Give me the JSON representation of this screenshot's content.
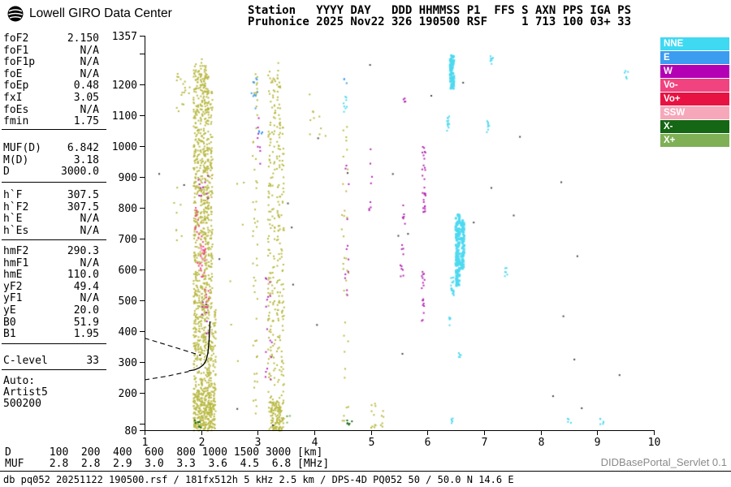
{
  "branding": {
    "logo_text": "Lowell GIRO Data Center"
  },
  "header": {
    "line1": "Station   YYYY DAY   DDD HHMMSS P1  FFS S AXN PPS IGA PS",
    "line2": "Pruhonice 2025 Nov22 326 190500 RSF     1 713 100 03+ 33"
  },
  "parameters": {
    "groups": [
      [
        {
          "l": "foF2",
          "v": "2.150"
        },
        {
          "l": "foF1",
          "v": "N/A"
        },
        {
          "l": "foF1p",
          "v": "N/A"
        },
        {
          "l": "foE",
          "v": "N/A"
        },
        {
          "l": "foEp",
          "v": "0.48"
        },
        {
          "l": "fxI",
          "v": "3.05"
        },
        {
          "l": "foEs",
          "v": "N/A"
        },
        {
          "l": "fmin",
          "v": "1.75"
        }
      ],
      [
        {
          "l": "MUF(D)",
          "v": "6.842"
        },
        {
          "l": "M(D)",
          "v": "3.18"
        },
        {
          "l": "D",
          "v": "3000.0"
        }
      ],
      [
        {
          "l": "h`F",
          "v": "307.5"
        },
        {
          "l": "h`F2",
          "v": "307.5"
        },
        {
          "l": "h`E",
          "v": "N/A"
        },
        {
          "l": "h`Es",
          "v": "N/A"
        }
      ],
      [
        {
          "l": "hmF2",
          "v": "290.3"
        },
        {
          "l": "hmF1",
          "v": "N/A"
        },
        {
          "l": "hmE",
          "v": "110.0"
        },
        {
          "l": "yF2",
          "v": "49.4"
        },
        {
          "l": "yF1",
          "v": "N/A"
        },
        {
          "l": "yE",
          "v": "20.0"
        },
        {
          "l": "B0",
          "v": "51.9"
        },
        {
          "l": "B1",
          "v": "1.95"
        }
      ],
      [
        {
          "l": "C-level",
          "v": "33"
        }
      ]
    ],
    "auto": [
      "Auto:",
      "Artist5",
      "500200"
    ]
  },
  "legend": [
    {
      "id": "nne",
      "label": "NNE",
      "color": "#3fd9f2"
    },
    {
      "id": "e",
      "label": "E",
      "color": "#3b9cf0"
    },
    {
      "id": "w",
      "label": "W",
      "color": "#b400b4"
    },
    {
      "id": "vo-neg",
      "label": "Vo-",
      "color": "#f1437f"
    },
    {
      "id": "vo-pos",
      "label": "Vo+",
      "color": "#e81242"
    },
    {
      "id": "ssw",
      "label": "SSW",
      "color": "#f6a8ba"
    },
    {
      "id": "x-neg",
      "label": "X-",
      "color": "#156615"
    },
    {
      "id": "x-pos",
      "label": "X+",
      "color": "#7fb056"
    }
  ],
  "chart_data": {
    "type": "scatter",
    "title": "",
    "xlabel": "[MHz]",
    "ylabel": "[km]",
    "x_range": [
      1,
      10
    ],
    "y_range": [
      80,
      1357
    ],
    "grid": false,
    "x_ticks": [
      1,
      2,
      3,
      4,
      5,
      6,
      7,
      8,
      9,
      10
    ],
    "y_ticks": [
      {
        "km": 1357,
        "label": "1357"
      },
      {
        "km": 1300,
        "label": ""
      },
      {
        "km": 1200,
        "label": "1200"
      },
      {
        "km": 1100,
        "label": "1100"
      },
      {
        "km": 1000,
        "label": "1000"
      },
      {
        "km": 900,
        "label": "900"
      },
      {
        "km": 800,
        "label": "800"
      },
      {
        "km": 700,
        "label": "700"
      },
      {
        "km": 600,
        "label": "600"
      },
      {
        "km": 500,
        "label": "500"
      },
      {
        "km": 400,
        "label": "400"
      },
      {
        "km": 300,
        "label": "300"
      },
      {
        "km": 200,
        "label": "200"
      },
      {
        "km": 100,
        "label": ""
      },
      {
        "km": 80,
        "label": "80"
      }
    ],
    "colors": {
      "ol": "#b9b944",
      "cy": "#4ed9f0",
      "bl": "#3b9cf0",
      "mg": "#b428b4",
      "pk": "#f1437f",
      "lp": "#f6a8ba",
      "dg": "#156615",
      "lg": "#7fb056",
      "nz": "#444444"
    },
    "bands": [
      {
        "f": 1.875,
        "fw": 0.05,
        "h0": 85,
        "h1": 1276,
        "n": 220,
        "c": "ol"
      },
      {
        "f": 1.933,
        "fw": 0.05,
        "h0": 85,
        "h1": 1249,
        "n": 160,
        "c": "ol"
      },
      {
        "f": 1.99,
        "fw": 0.05,
        "h0": 85,
        "h1": 1289,
        "n": 200,
        "c": "ol"
      },
      {
        "f": 2.048,
        "fw": 0.05,
        "h0": 85,
        "h1": 1262,
        "n": 240,
        "c": "ol"
      },
      {
        "f": 2.105,
        "fw": 0.05,
        "h0": 85,
        "h1": 1236,
        "n": 200,
        "c": "ol"
      },
      {
        "f": 2.163,
        "fw": 0.05,
        "h0": 85,
        "h1": 1183,
        "n": 140,
        "c": "ol"
      },
      {
        "f": 2.22,
        "fw": 0.05,
        "h0": 85,
        "h1": 474,
        "n": 60,
        "c": "ol"
      },
      {
        "f": 2.034,
        "fw": 0.37,
        "h0": 80,
        "h1": 211,
        "n": 180,
        "c": "ol"
      },
      {
        "f": 2.6,
        "fw": 0.3,
        "h0": 200,
        "h1": 900,
        "n": 6,
        "c": "ol"
      },
      {
        "f": 2.938,
        "fw": 0.09,
        "h0": 106,
        "h1": 1236,
        "n": 55,
        "c": "ol"
      },
      {
        "f": 3.196,
        "fw": 0.06,
        "h0": 85,
        "h1": 1249,
        "n": 90,
        "c": "ol"
      },
      {
        "f": 3.268,
        "fw": 0.06,
        "h0": 85,
        "h1": 1223,
        "n": 80,
        "c": "ol"
      },
      {
        "f": 3.354,
        "fw": 0.06,
        "h0": 85,
        "h1": 1276,
        "n": 110,
        "c": "ol"
      },
      {
        "f": 3.426,
        "fw": 0.05,
        "h0": 85,
        "h1": 1078,
        "n": 60,
        "c": "ol"
      },
      {
        "f": 3.325,
        "fw": 0.23,
        "h0": 80,
        "h1": 172,
        "n": 90,
        "c": "ol"
      },
      {
        "f": 1.675,
        "fw": 0.26,
        "h0": 1105,
        "h1": 1249,
        "n": 18,
        "c": "ol"
      },
      {
        "f": 1.574,
        "fw": 0.14,
        "h0": 684,
        "h1": 868,
        "n": 8,
        "c": "ol"
      },
      {
        "f": 4.531,
        "fw": 0.12,
        "h0": 106,
        "h1": 1223,
        "n": 35,
        "c": "ol"
      },
      {
        "f": 5.033,
        "fw": 0.09,
        "h0": 85,
        "h1": 185,
        "n": 10,
        "c": "ol"
      },
      {
        "f": 5.191,
        "fw": 0.07,
        "h0": 93,
        "h1": 146,
        "n": 6,
        "c": "ol"
      },
      {
        "f": 4.043,
        "fw": 0.29,
        "h0": 1000,
        "h1": 1183,
        "n": 10,
        "c": "ol"
      },
      {
        "f": 6.411,
        "fw": 0.07,
        "h0": 1189,
        "h1": 1299,
        "n": 80,
        "c": "cy",
        "s": 3
      },
      {
        "f": 6.354,
        "fw": 0.05,
        "h0": 1052,
        "h1": 1105,
        "n": 12,
        "c": "cy"
      },
      {
        "f": 6.512,
        "fw": 0.07,
        "h0": 548,
        "h1": 784,
        "n": 130,
        "c": "cy",
        "s": 3
      },
      {
        "f": 6.598,
        "fw": 0.06,
        "h0": 606,
        "h1": 763,
        "n": 60,
        "c": "cy",
        "s": 3
      },
      {
        "f": 6.425,
        "fw": 0.05,
        "h0": 506,
        "h1": 585,
        "n": 20,
        "c": "cy"
      },
      {
        "f": 6.382,
        "fw": 0.05,
        "h0": 422,
        "h1": 448,
        "n": 6,
        "c": "cy"
      },
      {
        "f": 6.42,
        "fw": 0.05,
        "h0": 95,
        "h1": 130,
        "n": 5,
        "c": "cy"
      },
      {
        "f": 7.114,
        "fw": 0.06,
        "h0": 1262,
        "h1": 1294,
        "n": 8,
        "c": "cy"
      },
      {
        "f": 7.057,
        "fw": 0.05,
        "h0": 1047,
        "h1": 1084,
        "n": 8,
        "c": "cy"
      },
      {
        "f": 7.373,
        "fw": 0.05,
        "h0": 579,
        "h1": 611,
        "n": 6,
        "c": "cy"
      },
      {
        "f": 4.531,
        "fw": 0.06,
        "h0": 1105,
        "h1": 1163,
        "n": 8,
        "c": "cy"
      },
      {
        "f": 9.497,
        "fw": 0.07,
        "h0": 1220,
        "h1": 1247,
        "n": 6,
        "c": "cy"
      },
      {
        "f": 9.081,
        "fw": 0.09,
        "h0": 101,
        "h1": 127,
        "n": 6,
        "c": "cy"
      },
      {
        "f": 8.492,
        "fw": 0.06,
        "h0": 106,
        "h1": 122,
        "n": 4,
        "c": "cy"
      },
      {
        "f": 6.555,
        "fw": 0.05,
        "h0": 303,
        "h1": 343,
        "n": 5,
        "c": "cy"
      },
      {
        "f": 5.923,
        "fw": 0.06,
        "h0": 784,
        "h1": 1000,
        "n": 28,
        "c": "mg"
      },
      {
        "f": 5.909,
        "fw": 0.05,
        "h0": 435,
        "h1": 606,
        "n": 18,
        "c": "mg"
      },
      {
        "f": 5.536,
        "fw": 0.06,
        "h0": 579,
        "h1": 684,
        "n": 10,
        "c": "mg"
      },
      {
        "f": 5.564,
        "fw": 0.05,
        "h0": 737,
        "h1": 816,
        "n": 6,
        "c": "mg"
      },
      {
        "f": 5.579,
        "fw": 0.05,
        "h0": 1118,
        "h1": 1157,
        "n": 4,
        "c": "mg"
      },
      {
        "f": 3.182,
        "fw": 0.12,
        "h0": 238,
        "h1": 684,
        "n": 16,
        "c": "mg"
      },
      {
        "f": 3.01,
        "fw": 0.07,
        "h0": 894,
        "h1": 1105,
        "n": 8,
        "c": "mg"
      },
      {
        "f": 4.56,
        "fw": 0.07,
        "h0": 474,
        "h1": 947,
        "n": 12,
        "c": "mg"
      },
      {
        "f": 4.976,
        "fw": 0.06,
        "h0": 789,
        "h1": 1000,
        "n": 8,
        "c": "mg"
      },
      {
        "f": 2.03,
        "fw": 0.2,
        "h0": 789,
        "h1": 947,
        "n": 10,
        "c": "mg"
      },
      {
        "f": 2.062,
        "fw": 0.12,
        "h0": 369,
        "h1": 527,
        "n": 8,
        "c": "mg"
      },
      {
        "f": 1.99,
        "fw": 0.14,
        "h0": 579,
        "h1": 721,
        "n": 28,
        "c": "pk"
      },
      {
        "f": 1.904,
        "fw": 0.09,
        "h0": 724,
        "h1": 816,
        "n": 10,
        "c": "pk"
      },
      {
        "f": 2.091,
        "fw": 0.09,
        "h0": 474,
        "h1": 566,
        "n": 8,
        "c": "pk"
      },
      {
        "f": 2.03,
        "fw": 0.12,
        "h0": 632,
        "h1": 684,
        "n": 8,
        "c": "lp"
      },
      {
        "f": 2.923,
        "fw": 0.12,
        "h0": 1118,
        "h1": 1223,
        "n": 10,
        "c": "bl"
      },
      {
        "f": 3.038,
        "fw": 0.07,
        "h0": 1039,
        "h1": 1078,
        "n": 4,
        "c": "bl"
      },
      {
        "f": 4.531,
        "fw": 0.06,
        "h0": 1199,
        "h1": 1220,
        "n": 3,
        "c": "bl"
      },
      {
        "f": 4.617,
        "fw": 0.12,
        "h0": 93,
        "h1": 119,
        "n": 6,
        "c": "dg"
      },
      {
        "f": 1.933,
        "fw": 0.12,
        "h0": 85,
        "h1": 117,
        "n": 6,
        "c": "dg"
      },
      {
        "f": 3.526,
        "fw": 0.06,
        "h0": 106,
        "h1": 138,
        "n": 4,
        "c": "lg"
      },
      {
        "f": 5.5,
        "fw": 8.6,
        "h0": 85,
        "h1": 1270,
        "n": 30,
        "c": "nz"
      }
    ],
    "trace": {
      "solid": [
        [
          1.78,
          272
        ],
        [
          1.88,
          275
        ],
        [
          1.97,
          282
        ],
        [
          2.04,
          292
        ],
        [
          2.09,
          307
        ],
        [
          2.12,
          330
        ],
        [
          2.14,
          370
        ],
        [
          2.15,
          405
        ],
        [
          2.155,
          432
        ]
      ],
      "dashed": [
        [
          [
            1.0,
            378
          ],
          [
            1.5,
            350
          ],
          [
            1.99,
            322
          ]
        ],
        [
          [
            1.0,
            243
          ],
          [
            1.4,
            255
          ],
          [
            1.78,
            270
          ]
        ]
      ]
    },
    "muf_table": {
      "D_km": [
        100,
        200,
        400,
        600,
        800,
        1000,
        1500,
        3000
      ],
      "MUF_MHz": [
        2.8,
        2.8,
        2.9,
        3.0,
        3.3,
        3.6,
        4.5,
        6.8
      ]
    }
  },
  "footer": {
    "d_line": "D      100  200  400  600  800 1000 1500 3000 [km]",
    "muf_line": "MUF    2.8  2.8  2.9  3.0  3.3  3.6  4.5  6.8 [MHz]",
    "servlet": "DIDBasePortal_Servlet 0.1",
    "status": "db pq052 20251122 190500.rsf / 181fx512h 5 kHz 2.5 km / DPS-4D PQ052 50 / 50.0 N 14.6 E"
  }
}
